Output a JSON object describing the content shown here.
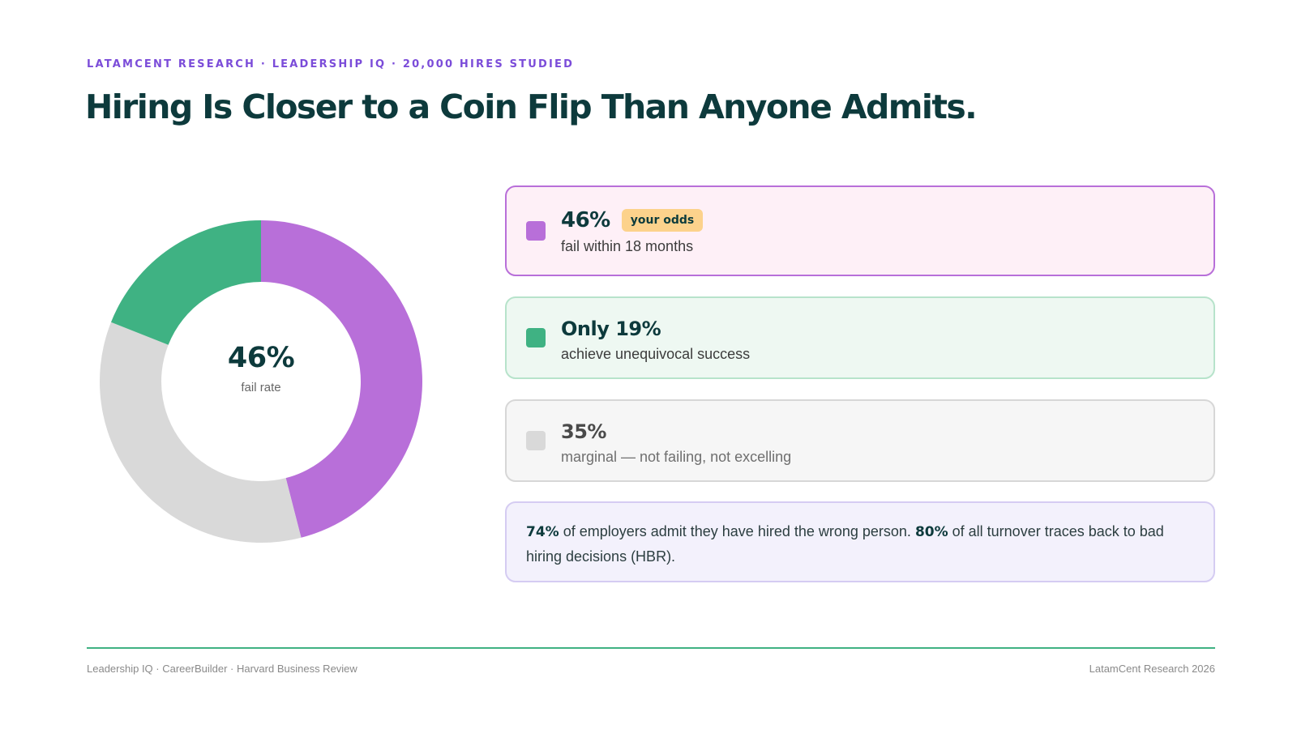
{
  "header": {
    "eyebrow": "LATAMCENT RESEARCH · LEADERSHIP IQ · 20,000 HIRES STUDIED",
    "title": "Hiring Is Closer to a Coin Flip Than Anyone Admits."
  },
  "chart_data": {
    "type": "pie",
    "variant": "donut",
    "labels": [
      "fail within 18 months",
      "marginal — not failing, not excelling",
      "achieve unequivocal success"
    ],
    "values": [
      46,
      35,
      19
    ],
    "colors": [
      "#b86fd9",
      "#d9d9d9",
      "#3fb283"
    ],
    "center_value": "46%",
    "center_label": "fail rate",
    "legend_position": "right"
  },
  "cards": {
    "fail": {
      "value": "46%",
      "badge": "your odds",
      "description": "fail within 18 months",
      "color": "#b86fd9"
    },
    "success": {
      "value": "Only 19%",
      "description": "achieve unequivocal success",
      "color": "#3fb283"
    },
    "marginal": {
      "value": "35%",
      "description": "marginal — not failing, not excelling",
      "color": "#d9d9d9"
    }
  },
  "note": {
    "stat1": "74%",
    "text1": " of employers admit they have hired the wrong person. ",
    "stat2": "80%",
    "text2": " of all turnover traces back to bad hiring decisions (HBR)."
  },
  "footer": {
    "sources": "Leadership IQ · CareerBuilder · Harvard Business Review",
    "credit": "LatamCent Research 2026"
  },
  "colors": {
    "accent": "#7b4cd9",
    "title": "#0d3a3c",
    "badge_bg": "#fcd28c",
    "rule": "#3fb283"
  }
}
